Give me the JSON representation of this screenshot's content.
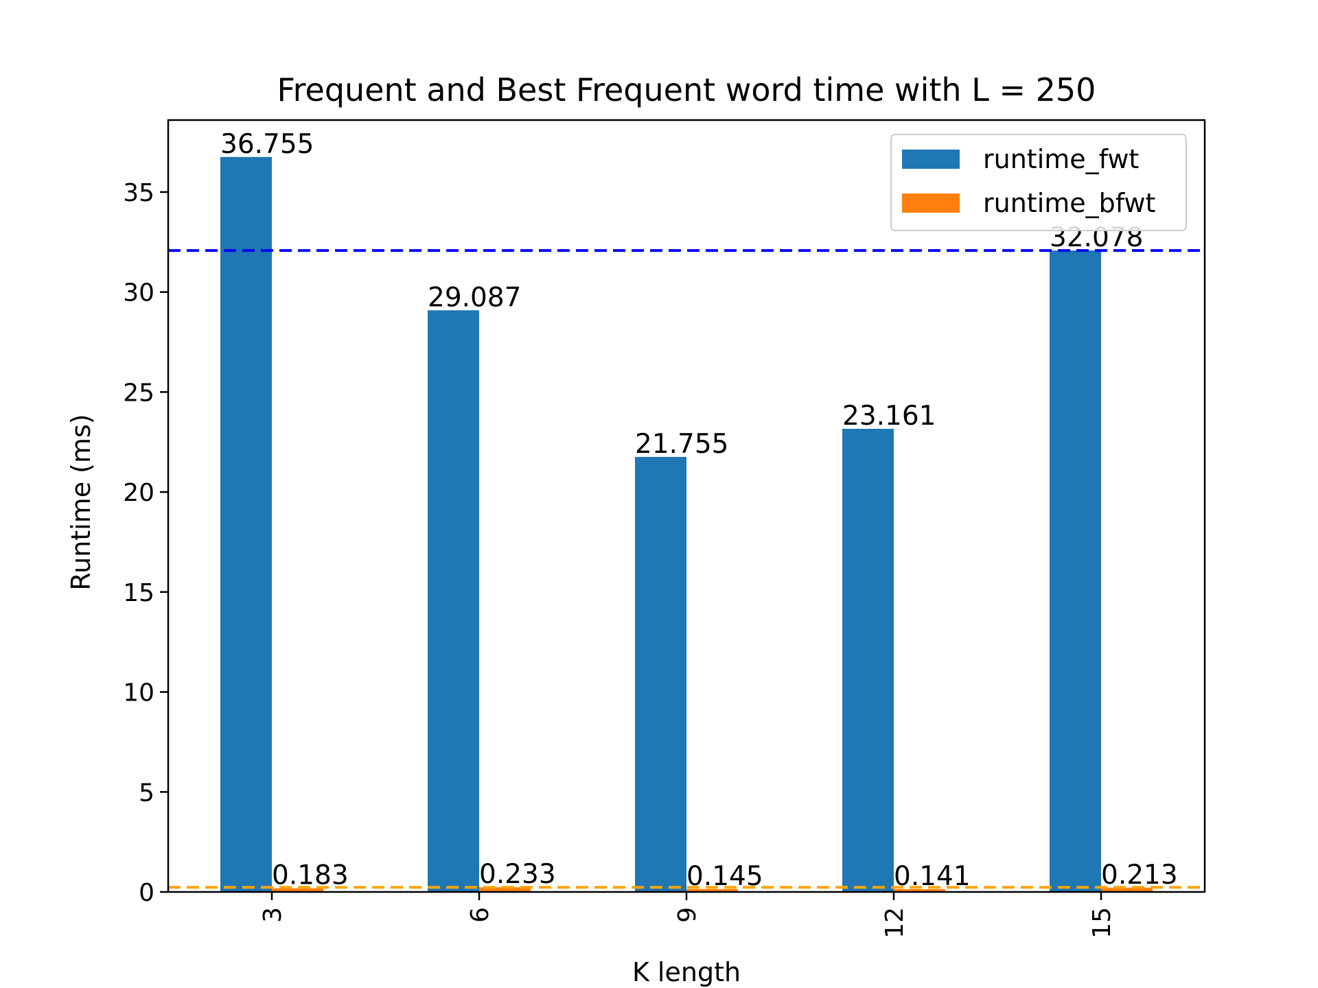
{
  "chart_data": {
    "type": "bar",
    "title": "Frequent and Best Frequent word time with L = 250",
    "xlabel": "K length",
    "ylabel": "Runtime (ms)",
    "categories": [
      "3",
      "6",
      "9",
      "12",
      "15"
    ],
    "series": [
      {
        "name": "runtime_fwt",
        "color": "#1f77b4",
        "values": [
          36.755,
          29.087,
          21.755,
          23.161,
          32.078
        ],
        "labels": [
          "36.755",
          "29.087",
          "21.755",
          "23.161",
          "32.078"
        ]
      },
      {
        "name": "runtime_bfwt",
        "color": "#ff7f0e",
        "values": [
          0.183,
          0.233,
          0.145,
          0.141,
          0.213
        ],
        "labels": [
          "0.183",
          "0.233",
          "0.145",
          "0.141",
          "0.213"
        ]
      }
    ],
    "reference_lines": [
      {
        "value": 32.078,
        "color": "#0000ff",
        "style": "dashed"
      },
      {
        "value": 0.233,
        "color": "#ffa500",
        "style": "dashed"
      }
    ],
    "ylim": [
      0,
      38.6
    ],
    "yticks": [
      0,
      5,
      10,
      15,
      20,
      25,
      30,
      35
    ],
    "ytick_labels": [
      "0",
      "5",
      "10",
      "15",
      "20",
      "25",
      "30",
      "35"
    ],
    "xtick_rotation": "vertical",
    "grid": false,
    "legend_position": "upper right"
  }
}
